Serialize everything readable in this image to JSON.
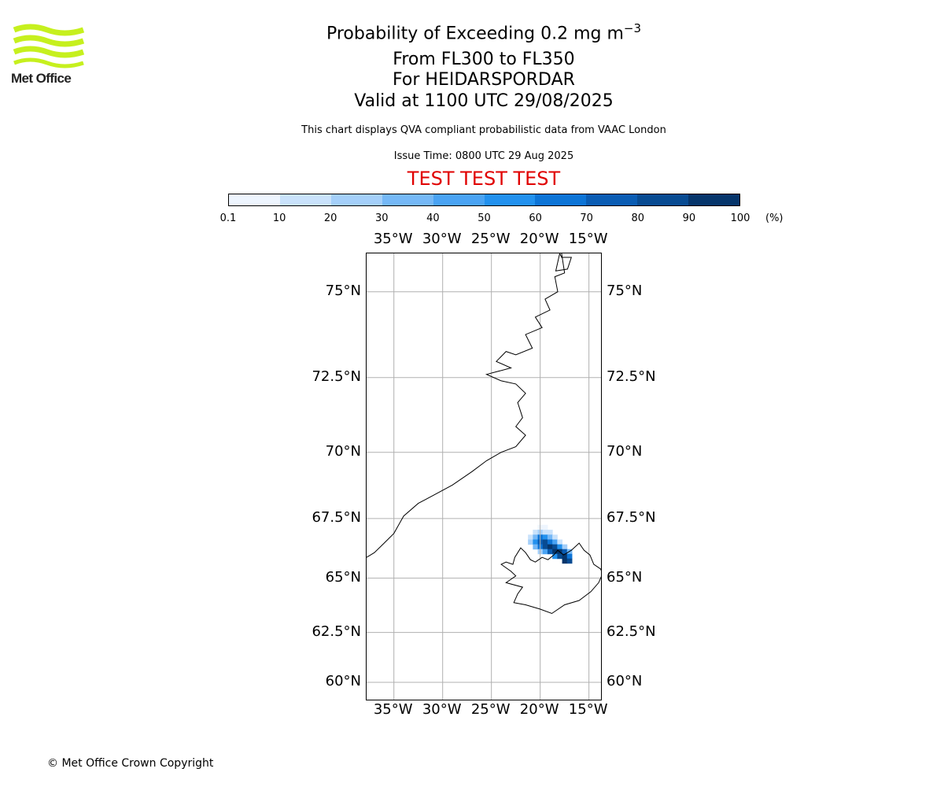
{
  "logo": {
    "text": "Met Office",
    "color": "#c6f01e"
  },
  "title": {
    "main": "Probability of Exceeding 0.2 mg m",
    "superscript": "−3",
    "line2": "From FL300 to FL350",
    "line3": "For HEIDARSPORDAR",
    "line4": "Valid at 1100 UTC 29/08/2025"
  },
  "subtitle": "This chart displays QVA compliant probabilistic data from VAAC London",
  "issue_time": "Issue Time: 0800 UTC 29 Aug 2025",
  "test_banner": "TEST TEST TEST",
  "colorbar": {
    "ticks": [
      "0.1",
      "10",
      "20",
      "30",
      "40",
      "50",
      "60",
      "70",
      "80",
      "90",
      "100"
    ],
    "unit": "(%)",
    "colors": [
      "#eef5fe",
      "#c9e2fb",
      "#a4cff9",
      "#75b8f6",
      "#4aa3f3",
      "#2291ee",
      "#0d74d6",
      "#0a5cb3",
      "#084b92",
      "#06356b"
    ]
  },
  "map": {
    "lon_ticks": [
      "35°W",
      "30°W",
      "25°W",
      "20°W",
      "15°W"
    ],
    "lon_values": [
      -35,
      -30,
      -25,
      -20,
      -15
    ],
    "lat_ticks": [
      "75°N",
      "72.5°N",
      "70°N",
      "67.5°N",
      "65°N",
      "62.5°N",
      "60°N"
    ],
    "lat_values": [
      75,
      72.5,
      70,
      67.5,
      65,
      62.5,
      60
    ],
    "lon_range": [
      -37.8,
      -13.6
    ],
    "lat_range": [
      59,
      76
    ],
    "projection": "mercator",
    "grid": true,
    "grid_color": "#b0b0b0",
    "probability_cells": [
      {
        "lon": -20.0,
        "lat": 67.15,
        "p": 5
      },
      {
        "lon": -19.5,
        "lat": 67.15,
        "p": 5
      },
      {
        "lon": -20.5,
        "lat": 66.95,
        "p": 15
      },
      {
        "lon": -20.0,
        "lat": 66.95,
        "p": 25
      },
      {
        "lon": -19.5,
        "lat": 66.95,
        "p": 15
      },
      {
        "lon": -19.0,
        "lat": 66.95,
        "p": 10
      },
      {
        "lon": -21.0,
        "lat": 66.75,
        "p": 15
      },
      {
        "lon": -20.5,
        "lat": 66.75,
        "p": 35
      },
      {
        "lon": -20.0,
        "lat": 66.75,
        "p": 65
      },
      {
        "lon": -19.5,
        "lat": 66.75,
        "p": 55
      },
      {
        "lon": -19.0,
        "lat": 66.75,
        "p": 35
      },
      {
        "lon": -18.5,
        "lat": 66.75,
        "p": 15
      },
      {
        "lon": -21.0,
        "lat": 66.55,
        "p": 25
      },
      {
        "lon": -20.5,
        "lat": 66.55,
        "p": 55
      },
      {
        "lon": -20.0,
        "lat": 66.55,
        "p": 75
      },
      {
        "lon": -19.5,
        "lat": 66.55,
        "p": 85
      },
      {
        "lon": -19.0,
        "lat": 66.55,
        "p": 65
      },
      {
        "lon": -18.5,
        "lat": 66.55,
        "p": 45
      },
      {
        "lon": -18.0,
        "lat": 66.55,
        "p": 15
      },
      {
        "lon": -20.5,
        "lat": 66.35,
        "p": 35
      },
      {
        "lon": -20.0,
        "lat": 66.35,
        "p": 65
      },
      {
        "lon": -19.5,
        "lat": 66.35,
        "p": 85
      },
      {
        "lon": -19.0,
        "lat": 66.35,
        "p": 95
      },
      {
        "lon": -18.5,
        "lat": 66.35,
        "p": 85
      },
      {
        "lon": -18.0,
        "lat": 66.35,
        "p": 55
      },
      {
        "lon": -17.5,
        "lat": 66.35,
        "p": 25
      },
      {
        "lon": -20.0,
        "lat": 66.15,
        "p": 25
      },
      {
        "lon": -19.5,
        "lat": 66.15,
        "p": 45
      },
      {
        "lon": -19.0,
        "lat": 66.15,
        "p": 75
      },
      {
        "lon": -18.5,
        "lat": 66.15,
        "p": 95
      },
      {
        "lon": -18.0,
        "lat": 66.15,
        "p": 95
      },
      {
        "lon": -17.5,
        "lat": 66.15,
        "p": 75
      },
      {
        "lon": -17.0,
        "lat": 66.15,
        "p": 35
      },
      {
        "lon": -18.5,
        "lat": 65.95,
        "p": 55
      },
      {
        "lon": -18.0,
        "lat": 65.95,
        "p": 85
      },
      {
        "lon": -17.5,
        "lat": 65.95,
        "p": 95
      },
      {
        "lon": -17.0,
        "lat": 65.95,
        "p": 65
      },
      {
        "lon": -17.5,
        "lat": 65.75,
        "p": 95
      },
      {
        "lon": -17.0,
        "lat": 65.75,
        "p": 85
      }
    ],
    "coastlines": [
      [
        [
          -17.8,
          76
        ],
        [
          -17.5,
          75.5
        ],
        [
          -18.5,
          75.4
        ],
        [
          -18.2,
          75.0
        ],
        [
          -19.5,
          74.8
        ],
        [
          -19.0,
          74.5
        ],
        [
          -20.5,
          74.3
        ],
        [
          -19.8,
          74.0
        ],
        [
          -21.5,
          73.8
        ],
        [
          -20.8,
          73.4
        ],
        [
          -22.5,
          73.2
        ],
        [
          -23.5,
          73.3
        ],
        [
          -24.5,
          73.0
        ],
        [
          -23.0,
          72.8
        ],
        [
          -25.5,
          72.6
        ],
        [
          -24.0,
          72.4
        ],
        [
          -22.5,
          72.3
        ],
        [
          -21.5,
          72.0
        ],
        [
          -22.3,
          71.7
        ],
        [
          -21.8,
          71.2
        ],
        [
          -22.5,
          70.9
        ],
        [
          -21.5,
          70.6
        ],
        [
          -22.5,
          70.2
        ],
        [
          -24.0,
          70.0
        ],
        [
          -25.5,
          69.7
        ],
        [
          -27.0,
          69.3
        ],
        [
          -29.0,
          68.8
        ],
        [
          -31.0,
          68.4
        ],
        [
          -32.5,
          68.1
        ],
        [
          -34.0,
          67.6
        ],
        [
          -35.0,
          66.9
        ],
        [
          -36.0,
          66.5
        ],
        [
          -37.0,
          66.1
        ],
        [
          -37.8,
          65.9
        ]
      ],
      [
        [
          -18.0,
          76
        ],
        [
          -17.8,
          75.9
        ],
        [
          -16.8,
          75.9
        ],
        [
          -17.2,
          75.6
        ],
        [
          -18.4,
          75.55
        ],
        [
          -18.0,
          76
        ]
      ]
    ],
    "iceland": [
      [
        -24.0,
        65.6
      ],
      [
        -23.5,
        65.7
      ],
      [
        -22.8,
        65.6
      ],
      [
        -22.6,
        65.9
      ],
      [
        -22.0,
        66.3
      ],
      [
        -21.5,
        66.1
      ],
      [
        -21.0,
        65.8
      ],
      [
        -20.5,
        65.7
      ],
      [
        -19.8,
        65.9
      ],
      [
        -19.2,
        65.8
      ],
      [
        -18.6,
        66.0
      ],
      [
        -18.2,
        66.2
      ],
      [
        -17.6,
        66.0
      ],
      [
        -16.8,
        66.2
      ],
      [
        -16.0,
        66.5
      ],
      [
        -15.5,
        66.2
      ],
      [
        -14.9,
        66.0
      ],
      [
        -14.5,
        65.6
      ],
      [
        -13.8,
        65.4
      ],
      [
        -13.6,
        65.2
      ],
      [
        -14.0,
        64.8
      ],
      [
        -14.8,
        64.4
      ],
      [
        -16.0,
        64.0
      ],
      [
        -17.5,
        63.8
      ],
      [
        -18.8,
        63.4
      ],
      [
        -20.0,
        63.6
      ],
      [
        -21.5,
        63.8
      ],
      [
        -22.7,
        63.9
      ],
      [
        -22.3,
        64.3
      ],
      [
        -21.8,
        64.6
      ],
      [
        -23.5,
        64.8
      ],
      [
        -22.5,
        65.1
      ],
      [
        -23.0,
        65.3
      ],
      [
        -24.0,
        65.6
      ]
    ]
  },
  "copyright": "© Met Office Crown Copyright"
}
